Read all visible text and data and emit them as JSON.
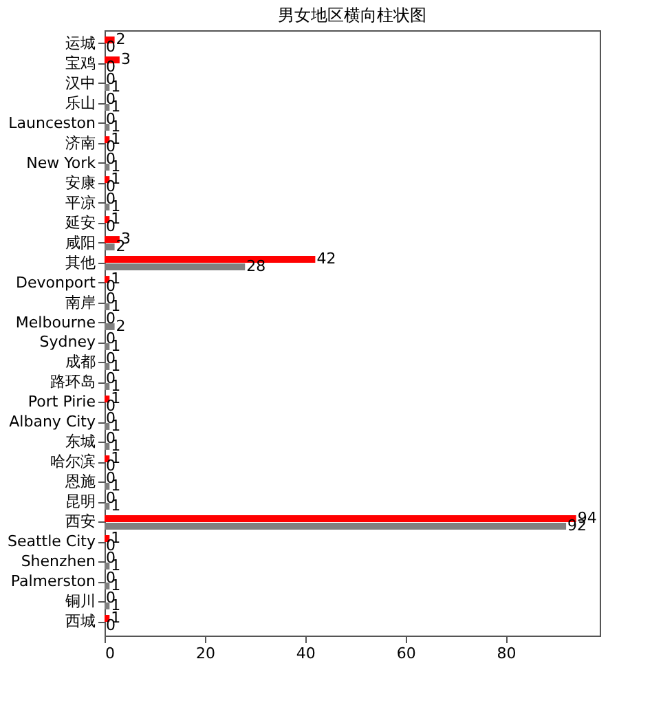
{
  "chart_data": {
    "type": "bar",
    "orientation": "horizontal",
    "title": "男女地区横向柱状图",
    "categories": [
      "运城",
      "宝鸡",
      "汉中",
      "乐山",
      "Launceston",
      "济南",
      "New York",
      "安康",
      "平凉",
      "延安",
      "咸阳",
      "其他",
      "Devonport",
      "南岸",
      "Melbourne",
      "Sydney",
      "成都",
      "路环岛",
      "Port Pirie",
      "Albany City",
      "东城",
      "哈尔滨",
      "恩施",
      "昆明",
      "西安",
      "Seattle City",
      "Shenzhen",
      "Palmerston",
      "铜川",
      "西城"
    ],
    "series": [
      {
        "color": "#ff0000",
        "values": [
          2,
          3,
          0,
          0,
          0,
          1,
          0,
          1,
          0,
          1,
          3,
          42,
          1,
          0,
          0,
          0,
          0,
          0,
          1,
          0,
          0,
          1,
          0,
          0,
          94,
          1,
          0,
          0,
          0,
          1
        ]
      },
      {
        "color": "#808080",
        "values": [
          0,
          0,
          1,
          1,
          1,
          0,
          1,
          0,
          1,
          0,
          2,
          28,
          0,
          1,
          2,
          1,
          1,
          1,
          0,
          1,
          1,
          0,
          1,
          1,
          92,
          0,
          1,
          1,
          1,
          0
        ]
      }
    ],
    "xlim": [
      0,
      98.7
    ],
    "xticks": [
      0,
      20,
      40,
      60,
      80
    ],
    "grid": false,
    "data_labels": true,
    "legend": false
  }
}
